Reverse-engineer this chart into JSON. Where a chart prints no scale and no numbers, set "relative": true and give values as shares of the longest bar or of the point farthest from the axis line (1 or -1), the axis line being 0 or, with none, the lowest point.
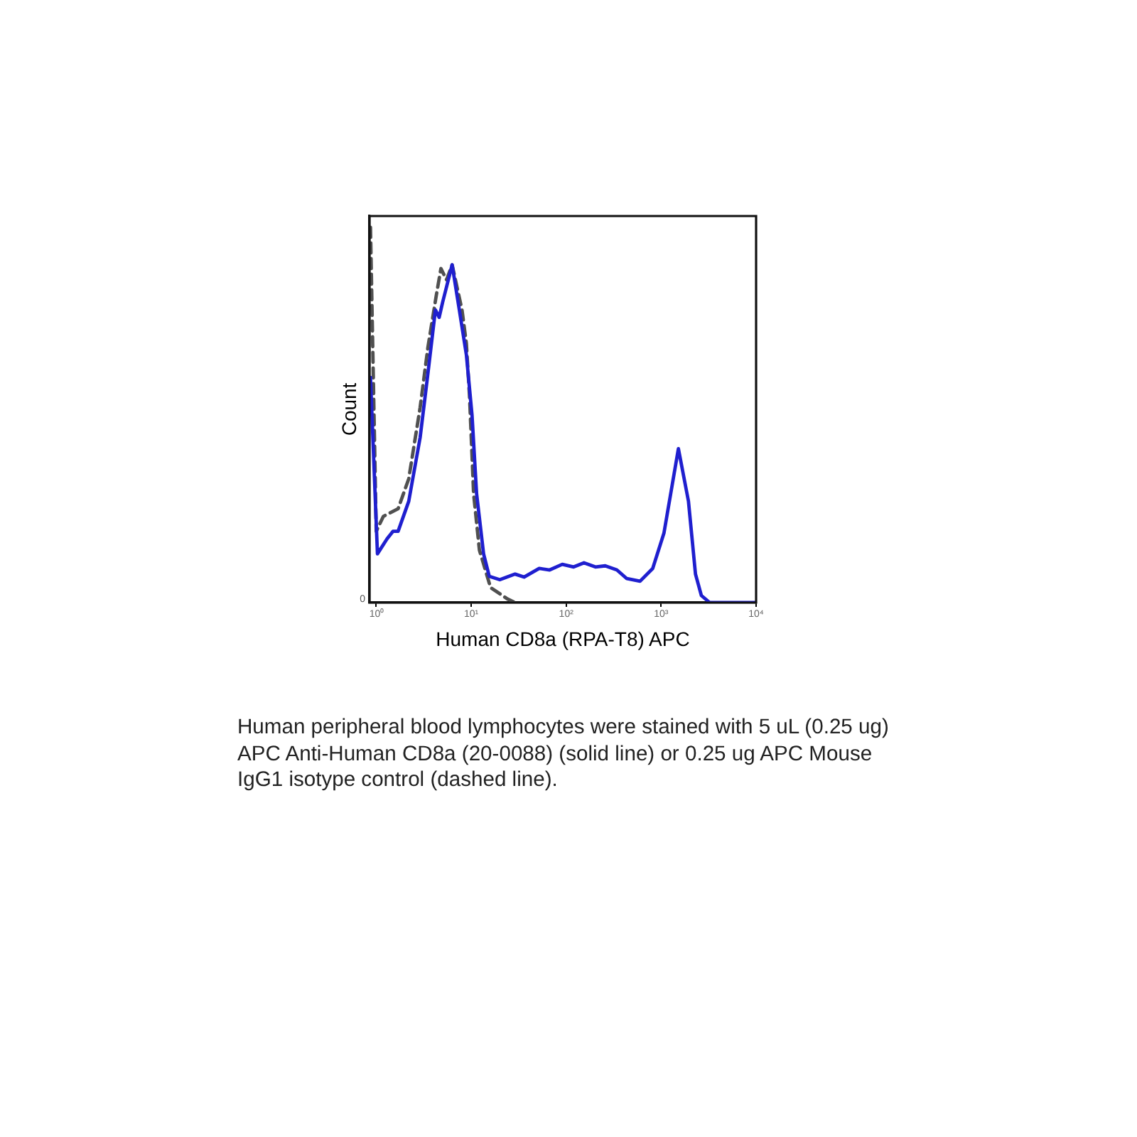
{
  "chart_data": {
    "type": "line",
    "xlabel": "Human CD8a (RPA-T8) APC",
    "ylabel": "Count",
    "log": "x",
    "relative": true,
    "xlim": [
      0.85,
      10000
    ],
    "xticks": [
      {
        "value": 1,
        "label": "10⁰"
      },
      {
        "value": 10,
        "label": "10¹"
      },
      {
        "value": 100,
        "label": "10²"
      },
      {
        "value": 1000,
        "label": "10³"
      },
      {
        "value": 10000,
        "label": "10⁴"
      }
    ],
    "series": [
      {
        "color": "#1f1fcf",
        "line_style": "solid",
        "x": [
          0.87,
          1.03,
          1.3,
          1.5,
          1.7,
          2.2,
          2.9,
          3.5,
          4.2,
          4.6,
          5.0,
          6.3,
          7.5,
          8.9,
          10.2,
          11.4,
          13.5,
          15.5,
          20,
          29,
          36,
          52,
          67,
          91,
          120,
          154,
          203,
          258,
          342,
          435,
          600,
          815,
          1070,
          1520,
          1940,
          2300,
          2650,
          3250,
          10000
        ],
        "values": [
          0.6,
          0.13,
          0.17,
          0.19,
          0.19,
          0.27,
          0.44,
          0.61,
          0.78,
          0.76,
          0.8,
          0.9,
          0.78,
          0.66,
          0.5,
          0.29,
          0.13,
          0.07,
          0.061,
          0.076,
          0.068,
          0.091,
          0.087,
          0.102,
          0.095,
          0.106,
          0.095,
          0.098,
          0.087,
          0.064,
          0.057,
          0.091,
          0.185,
          0.41,
          0.27,
          0.076,
          0.019,
          0,
          0
        ]
      },
      {
        "color": "#505050",
        "line_style": "dashed",
        "x": [
          0.87,
          1.0,
          1.19,
          1.7,
          2.2,
          2.9,
          3.5,
          4.3,
          4.8,
          5.5,
          6.3,
          8.0,
          8.9,
          9.6,
          10.6,
          12.2,
          16,
          24,
          29
        ],
        "values": [
          1.0,
          0.19,
          0.23,
          0.25,
          0.33,
          0.52,
          0.68,
          0.82,
          0.89,
          0.86,
          0.9,
          0.78,
          0.69,
          0.55,
          0.29,
          0.14,
          0.04,
          0.01,
          0
        ]
      }
    ],
    "annotations": [
      "0",
      "Human peripheral blood lymphocytes were stained with 5 uL (0.25 ug) APC Anti-Human CD8a (20-0088) (solid line) or 0.25 ug APC Mouse IgG1 isotype control (dashed line)."
    ]
  }
}
